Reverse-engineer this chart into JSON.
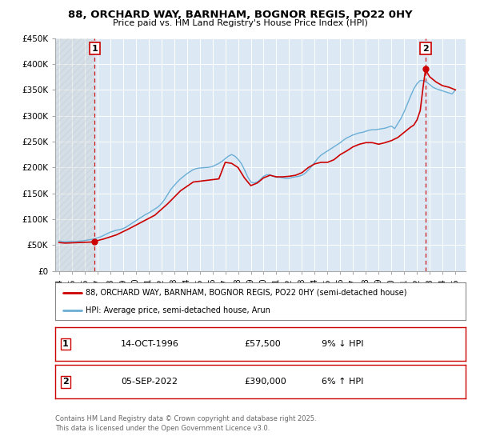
{
  "title": "88, ORCHARD WAY, BARNHAM, BOGNOR REGIS, PO22 0HY",
  "subtitle": "Price paid vs. HM Land Registry's House Price Index (HPI)",
  "background_color": "#ffffff",
  "plot_bg_color": "#dce9f5",
  "grid_color": "#ffffff",
  "ylim": [
    0,
    450000
  ],
  "yticks": [
    0,
    50000,
    100000,
    150000,
    200000,
    250000,
    300000,
    350000,
    400000,
    450000
  ],
  "ytick_labels": [
    "£0",
    "£50K",
    "£100K",
    "£150K",
    "£200K",
    "£250K",
    "£300K",
    "£350K",
    "£400K",
    "£450K"
  ],
  "xlim_start": 1993.7,
  "xlim_end": 2025.8,
  "xtick_years": [
    1994,
    1995,
    1996,
    1997,
    1998,
    1999,
    2000,
    2001,
    2002,
    2003,
    2004,
    2005,
    2006,
    2007,
    2008,
    2009,
    2010,
    2011,
    2012,
    2013,
    2014,
    2015,
    2016,
    2017,
    2018,
    2019,
    2020,
    2021,
    2022,
    2023,
    2024,
    2025
  ],
  "hpi_color": "#6aaed6",
  "price_color": "#cc0000",
  "vline_color": "#cc0000",
  "marker1_date": 1996.79,
  "marker1_price": 57500,
  "marker2_date": 2022.67,
  "marker2_price": 390000,
  "legend_label1": "88, ORCHARD WAY, BARNHAM, BOGNOR REGIS, PO22 0HY (semi-detached house)",
  "legend_label2": "HPI: Average price, semi-detached house, Arun",
  "footnote1": "Contains HM Land Registry data © Crown copyright and database right 2025.",
  "footnote2": "This data is licensed under the Open Government Licence v3.0.",
  "table_row1": [
    "1",
    "14-OCT-1996",
    "£57,500",
    "9% ↓ HPI"
  ],
  "table_row2": [
    "2",
    "05-SEP-2022",
    "£390,000",
    "6% ↑ HPI"
  ],
  "hpi_data": {
    "dates": [
      1994.0,
      1994.25,
      1994.5,
      1994.75,
      1995.0,
      1995.25,
      1995.5,
      1995.75,
      1996.0,
      1996.25,
      1996.5,
      1996.75,
      1997.0,
      1997.25,
      1997.5,
      1997.75,
      1998.0,
      1998.25,
      1998.5,
      1998.75,
      1999.0,
      1999.25,
      1999.5,
      1999.75,
      2000.0,
      2000.25,
      2000.5,
      2000.75,
      2001.0,
      2001.25,
      2001.5,
      2001.75,
      2002.0,
      2002.25,
      2002.5,
      2002.75,
      2003.0,
      2003.25,
      2003.5,
      2003.75,
      2004.0,
      2004.25,
      2004.5,
      2004.75,
      2005.0,
      2005.25,
      2005.5,
      2005.75,
      2006.0,
      2006.25,
      2006.5,
      2006.75,
      2007.0,
      2007.25,
      2007.5,
      2007.75,
      2008.0,
      2008.25,
      2008.5,
      2008.75,
      2009.0,
      2009.25,
      2009.5,
      2009.75,
      2010.0,
      2010.25,
      2010.5,
      2010.75,
      2011.0,
      2011.25,
      2011.5,
      2011.75,
      2012.0,
      2012.25,
      2012.5,
      2012.75,
      2013.0,
      2013.25,
      2013.5,
      2013.75,
      2014.0,
      2014.25,
      2014.5,
      2014.75,
      2015.0,
      2015.25,
      2015.5,
      2015.75,
      2016.0,
      2016.25,
      2016.5,
      2016.75,
      2017.0,
      2017.25,
      2017.5,
      2017.75,
      2018.0,
      2018.25,
      2018.5,
      2018.75,
      2019.0,
      2019.25,
      2019.5,
      2019.75,
      2020.0,
      2020.25,
      2020.5,
      2020.75,
      2021.0,
      2021.25,
      2021.5,
      2021.75,
      2022.0,
      2022.25,
      2022.5,
      2022.75,
      2023.0,
      2023.25,
      2023.5,
      2023.75,
      2024.0,
      2024.25,
      2024.5,
      2024.75,
      2025.0
    ],
    "values": [
      58000,
      57000,
      56500,
      57000,
      57500,
      57000,
      57500,
      58000,
      59000,
      60000,
      61000,
      62000,
      64000,
      66000,
      69000,
      72000,
      75000,
      77000,
      79000,
      80000,
      82000,
      85000,
      89000,
      93000,
      97000,
      101000,
      105000,
      109000,
      112000,
      116000,
      120000,
      124000,
      130000,
      138000,
      148000,
      158000,
      165000,
      172000,
      178000,
      183000,
      188000,
      192000,
      196000,
      198000,
      199000,
      199500,
      200000,
      200500,
      202000,
      205000,
      208000,
      212000,
      217000,
      222000,
      225000,
      222000,
      216000,
      208000,
      196000,
      182000,
      172000,
      170000,
      172000,
      177000,
      183000,
      186000,
      186000,
      183000,
      181000,
      181000,
      180000,
      179000,
      179000,
      181000,
      182000,
      183000,
      185000,
      189000,
      195000,
      202000,
      210000,
      218000,
      224000,
      228000,
      232000,
      236000,
      240000,
      244000,
      248000,
      253000,
      257000,
      260000,
      263000,
      265000,
      267000,
      268000,
      270000,
      272000,
      273000,
      273000,
      274000,
      275000,
      276000,
      278000,
      280000,
      275000,
      285000,
      295000,
      308000,
      323000,
      338000,
      352000,
      362000,
      368000,
      368000,
      365000,
      360000,
      355000,
      352000,
      350000,
      348000,
      346000,
      344000,
      342000,
      350000
    ]
  },
  "price_data": {
    "dates": [
      1994.0,
      1994.5,
      1995.0,
      1995.5,
      1996.0,
      1996.5,
      1996.79,
      1997.5,
      1998.5,
      1999.5,
      2000.5,
      2001.5,
      2002.5,
      2003.5,
      2004.5,
      2005.5,
      2006.5,
      2007.0,
      2007.5,
      2008.0,
      2008.5,
      2009.0,
      2009.5,
      2010.0,
      2010.5,
      2011.0,
      2011.5,
      2012.0,
      2012.5,
      2013.0,
      2013.5,
      2014.0,
      2014.5,
      2015.0,
      2015.5,
      2016.0,
      2016.5,
      2017.0,
      2017.5,
      2018.0,
      2018.5,
      2019.0,
      2019.5,
      2020.0,
      2020.5,
      2021.0,
      2021.5,
      2021.75,
      2022.0,
      2022.25,
      2022.5,
      2022.67,
      2022.75,
      2023.0,
      2023.5,
      2024.0,
      2024.5,
      2025.0
    ],
    "values": [
      55000,
      54000,
      54500,
      55000,
      55500,
      56000,
      57500,
      62000,
      70000,
      82000,
      95000,
      108000,
      130000,
      155000,
      172000,
      175000,
      178000,
      210000,
      208000,
      200000,
      180000,
      165000,
      170000,
      180000,
      185000,
      182000,
      182000,
      183000,
      185000,
      190000,
      200000,
      207000,
      210000,
      210000,
      215000,
      225000,
      232000,
      240000,
      245000,
      248000,
      248000,
      245000,
      248000,
      252000,
      258000,
      268000,
      278000,
      282000,
      292000,
      310000,
      360000,
      390000,
      385000,
      375000,
      365000,
      358000,
      355000,
      350000
    ]
  }
}
